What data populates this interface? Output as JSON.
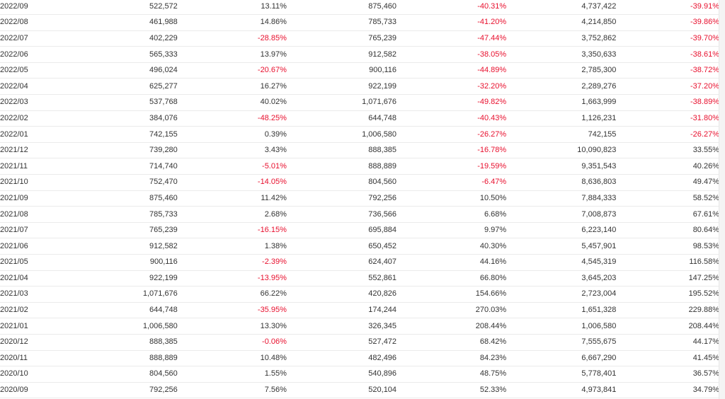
{
  "colors": {
    "negative": "#e8102e",
    "positive": "#333333",
    "border": "#ebebeb"
  },
  "table": {
    "rows": [
      [
        "2022/09",
        "522,572",
        "13.11%",
        "875,460",
        "-40.31%",
        "4,737,422",
        "-39.91%"
      ],
      [
        "2022/08",
        "461,988",
        "14.86%",
        "785,733",
        "-41.20%",
        "4,214,850",
        "-39.86%"
      ],
      [
        "2022/07",
        "402,229",
        "-28.85%",
        "765,239",
        "-47.44%",
        "3,752,862",
        "-39.70%"
      ],
      [
        "2022/06",
        "565,333",
        "13.97%",
        "912,582",
        "-38.05%",
        "3,350,633",
        "-38.61%"
      ],
      [
        "2022/05",
        "496,024",
        "-20.67%",
        "900,116",
        "-44.89%",
        "2,785,300",
        "-38.72%"
      ],
      [
        "2022/04",
        "625,277",
        "16.27%",
        "922,199",
        "-32.20%",
        "2,289,276",
        "-37.20%"
      ],
      [
        "2022/03",
        "537,768",
        "40.02%",
        "1,071,676",
        "-49.82%",
        "1,663,999",
        "-38.89%"
      ],
      [
        "2022/02",
        "384,076",
        "-48.25%",
        "644,748",
        "-40.43%",
        "1,126,231",
        "-31.80%"
      ],
      [
        "2022/01",
        "742,155",
        "0.39%",
        "1,006,580",
        "-26.27%",
        "742,155",
        "-26.27%"
      ],
      [
        "2021/12",
        "739,280",
        "3.43%",
        "888,385",
        "-16.78%",
        "10,090,823",
        "33.55%"
      ],
      [
        "2021/11",
        "714,740",
        "-5.01%",
        "888,889",
        "-19.59%",
        "9,351,543",
        "40.26%"
      ],
      [
        "2021/10",
        "752,470",
        "-14.05%",
        "804,560",
        "-6.47%",
        "8,636,803",
        "49.47%"
      ],
      [
        "2021/09",
        "875,460",
        "11.42%",
        "792,256",
        "10.50%",
        "7,884,333",
        "58.52%"
      ],
      [
        "2021/08",
        "785,733",
        "2.68%",
        "736,566",
        "6.68%",
        "7,008,873",
        "67.61%"
      ],
      [
        "2021/07",
        "765,239",
        "-16.15%",
        "695,884",
        "9.97%",
        "6,223,140",
        "80.64%"
      ],
      [
        "2021/06",
        "912,582",
        "1.38%",
        "650,452",
        "40.30%",
        "5,457,901",
        "98.53%"
      ],
      [
        "2021/05",
        "900,116",
        "-2.39%",
        "624,407",
        "44.16%",
        "4,545,319",
        "116.58%"
      ],
      [
        "2021/04",
        "922,199",
        "-13.95%",
        "552,861",
        "66.80%",
        "3,645,203",
        "147.25%"
      ],
      [
        "2021/03",
        "1,071,676",
        "66.22%",
        "420,826",
        "154.66%",
        "2,723,004",
        "195.52%"
      ],
      [
        "2021/02",
        "644,748",
        "-35.95%",
        "174,244",
        "270.03%",
        "1,651,328",
        "229.88%"
      ],
      [
        "2021/01",
        "1,006,580",
        "13.30%",
        "326,345",
        "208.44%",
        "1,006,580",
        "208.44%"
      ],
      [
        "2020/12",
        "888,385",
        "-0.06%",
        "527,472",
        "68.42%",
        "7,555,675",
        "44.17%"
      ],
      [
        "2020/11",
        "888,889",
        "10.48%",
        "482,496",
        "84.23%",
        "6,667,290",
        "41.45%"
      ],
      [
        "2020/10",
        "804,560",
        "1.55%",
        "540,896",
        "48.75%",
        "5,778,401",
        "36.57%"
      ],
      [
        "2020/09",
        "792,256",
        "7.56%",
        "520,104",
        "52.33%",
        "4,973,841",
        "34.79%"
      ]
    ]
  }
}
